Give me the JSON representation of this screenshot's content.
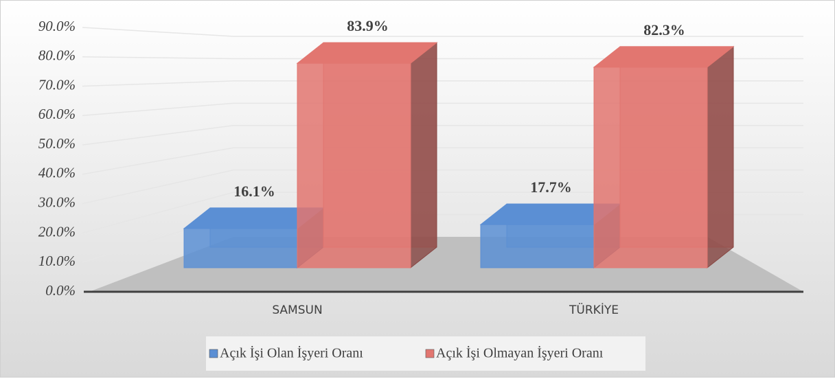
{
  "chart_data": {
    "type": "bar3d",
    "categories": [
      "SAMSUN",
      "TÜRKİYE"
    ],
    "series": [
      {
        "name": "Açık İşi Olan İşyeri Oranı",
        "color": "#5b8fd4",
        "values": [
          16.1,
          17.7
        ],
        "value_labels": [
          "16.1%",
          "17.7%"
        ]
      },
      {
        "name": "Açık İşi Olmayan İşyeri Oranı",
        "color": "#e27670",
        "values": [
          83.9,
          82.3
        ],
        "value_labels": [
          "83.9%",
          "82.3%"
        ]
      }
    ],
    "ylim": [
      0,
      90
    ],
    "yticks": [
      {
        "value": 0,
        "label": "0.0%"
      },
      {
        "value": 10,
        "label": "10.0%"
      },
      {
        "value": 20,
        "label": "20.0%"
      },
      {
        "value": 30,
        "label": "30.0%"
      },
      {
        "value": 40,
        "label": "40.0%"
      },
      {
        "value": 50,
        "label": "50.0%"
      },
      {
        "value": 60,
        "label": "60.0%"
      },
      {
        "value": 70,
        "label": "70.0%"
      },
      {
        "value": 80,
        "label": "80.0%"
      },
      {
        "value": 90,
        "label": "90.0%"
      }
    ],
    "grid": true,
    "legend": "bottom"
  }
}
